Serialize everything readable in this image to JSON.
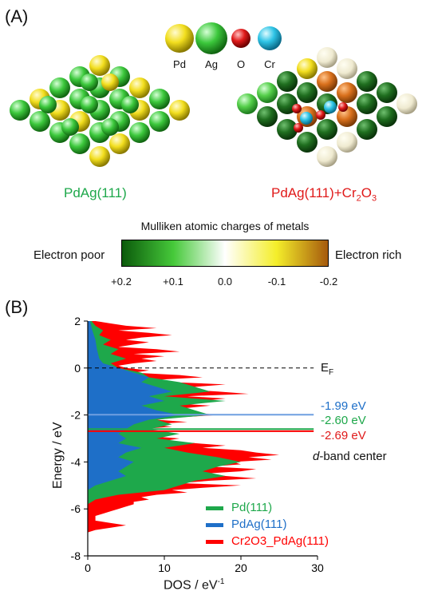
{
  "panel_a": {
    "label": "(A)",
    "atom_legend": [
      {
        "symbol": "Pd",
        "color": "#f2de1e"
      },
      {
        "symbol": "Ag",
        "color": "#3cc83c"
      },
      {
        "symbol": "O",
        "color": "#e01a1a"
      },
      {
        "symbol": "Cr",
        "color": "#2ec4e6"
      }
    ],
    "left_caption": "PdAg(111)",
    "right_caption_main": "PdAg(111)+Cr",
    "right_caption_sub1": "2",
    "right_caption_o": "O",
    "right_caption_sub2": "3",
    "colorbar": {
      "title": "Mulliken atomic charges of metals",
      "left_label": "Electron poor",
      "right_label": "Electron rich",
      "ticks": [
        "+0.2",
        "+0.1",
        "0.0",
        "-0.1",
        "-0.2"
      ],
      "colors": [
        "#0b5a0b",
        "#46c93a",
        "#ffffff",
        "#f4ee2a",
        "#a65a0d"
      ]
    }
  },
  "panel_b": {
    "label": "(B)",
    "fermi_label": "E",
    "fermi_sub": "F",
    "dband_label_italic": "d",
    "dband_label_rest": "-band center",
    "x_tick_labels": [
      "0",
      "10",
      "20",
      "30"
    ],
    "y_tick_labels": [
      "2",
      "0",
      "-2",
      "-4",
      "-6",
      "-8"
    ]
  },
  "chart_data": {
    "type": "area",
    "title": "",
    "xlabel": "DOS / eV",
    "xlabel_sup": "-1",
    "ylabel": "Energy / eV",
    "xlim": [
      0,
      30
    ],
    "ylim": [
      -8,
      2
    ],
    "x_ticks": [
      0,
      10,
      20,
      30
    ],
    "y_ticks": [
      2,
      0,
      -2,
      -4,
      -6,
      -8
    ],
    "fermi_level": 0,
    "series": [
      {
        "name": "Cr2O3_PdAg(111)",
        "color": "#ff0000",
        "band_center": -2.69,
        "band_center_label": "-2.69 eV",
        "dos": [
          [
            2,
            1
          ],
          [
            1.9,
            3
          ],
          [
            1.8,
            5
          ],
          [
            1.7,
            9
          ],
          [
            1.6,
            4
          ],
          [
            1.5,
            8
          ],
          [
            1.4,
            11
          ],
          [
            1.3,
            7
          ],
          [
            1.2,
            5
          ],
          [
            1.1,
            8
          ],
          [
            1,
            6
          ],
          [
            0.9,
            4
          ],
          [
            0.8,
            9
          ],
          [
            0.7,
            12
          ],
          [
            0.6,
            6
          ],
          [
            0.5,
            10
          ],
          [
            0.4,
            7
          ],
          [
            0.3,
            9
          ],
          [
            0.2,
            6
          ],
          [
            0.1,
            4
          ],
          [
            0,
            5
          ],
          [
            -0.1,
            8
          ],
          [
            -0.2,
            6
          ],
          [
            -0.3,
            12
          ],
          [
            -0.4,
            15
          ],
          [
            -0.5,
            9
          ],
          [
            -0.6,
            11
          ],
          [
            -0.7,
            18
          ],
          [
            -0.8,
            14
          ],
          [
            -0.9,
            12
          ],
          [
            -1,
            17
          ],
          [
            -1.1,
            21
          ],
          [
            -1.2,
            13
          ],
          [
            -1.3,
            18
          ],
          [
            -1.4,
            15
          ],
          [
            -1.5,
            11
          ],
          [
            -1.6,
            16
          ],
          [
            -1.7,
            13
          ],
          [
            -1.8,
            10
          ],
          [
            -1.9,
            14
          ],
          [
            -2,
            17
          ],
          [
            -2.1,
            12
          ],
          [
            -2.2,
            9
          ],
          [
            -2.3,
            13
          ],
          [
            -2.4,
            8
          ],
          [
            -2.5,
            11
          ],
          [
            -2.6,
            7
          ],
          [
            -2.7,
            10
          ],
          [
            -2.8,
            6
          ],
          [
            -2.9,
            8
          ],
          [
            -3,
            12
          ],
          [
            -3.1,
            10
          ],
          [
            -3.2,
            14
          ],
          [
            -3.3,
            18
          ],
          [
            -3.4,
            15
          ],
          [
            -3.5,
            20
          ],
          [
            -3.6,
            22
          ],
          [
            -3.7,
            25
          ],
          [
            -3.8,
            21
          ],
          [
            -3.9,
            24
          ],
          [
            -4,
            19
          ],
          [
            -4.1,
            20
          ],
          [
            -4.2,
            16
          ],
          [
            -4.3,
            22
          ],
          [
            -4.4,
            20
          ],
          [
            -4.5,
            15
          ],
          [
            -4.6,
            18
          ],
          [
            -4.7,
            22
          ],
          [
            -4.8,
            16
          ],
          [
            -4.9,
            12
          ],
          [
            -5,
            20
          ],
          [
            -5.1,
            15
          ],
          [
            -5.2,
            11
          ],
          [
            -5.3,
            13
          ],
          [
            -5.4,
            9
          ],
          [
            -5.5,
            7
          ],
          [
            -5.6,
            8
          ],
          [
            -5.7,
            6
          ],
          [
            -5.8,
            6
          ],
          [
            -5.9,
            5
          ],
          [
            -6,
            4
          ],
          [
            -6.1,
            3
          ],
          [
            -6.2,
            2
          ],
          [
            -6.3,
            1
          ],
          [
            -6.4,
            1
          ],
          [
            -6.5,
            1
          ],
          [
            -6.6,
            3
          ],
          [
            -6.7,
            5
          ],
          [
            -6.8,
            3
          ],
          [
            -6.9,
            1
          ],
          [
            -7,
            0
          ]
        ]
      },
      {
        "name": "Pd(111)",
        "color": "#1ea84b",
        "band_center": -2.6,
        "band_center_label": "-2.60 eV",
        "dos": [
          [
            2,
            0.5
          ],
          [
            1.8,
            1
          ],
          [
            1.6,
            2
          ],
          [
            1.4,
            1.5
          ],
          [
            1.2,
            3
          ],
          [
            1,
            2
          ],
          [
            0.8,
            4
          ],
          [
            0.6,
            3
          ],
          [
            0.4,
            5
          ],
          [
            0.2,
            3
          ],
          [
            0,
            4
          ],
          [
            -0.2,
            7
          ],
          [
            -0.4,
            8
          ],
          [
            -0.6,
            12
          ],
          [
            -0.8,
            14
          ],
          [
            -1,
            16
          ],
          [
            -1.2,
            10
          ],
          [
            -1.4,
            18
          ],
          [
            -1.6,
            12
          ],
          [
            -1.8,
            14
          ],
          [
            -2,
            16
          ],
          [
            -2.2,
            9
          ],
          [
            -2.4,
            11
          ],
          [
            -2.6,
            8
          ],
          [
            -2.8,
            12
          ],
          [
            -3,
            9
          ],
          [
            -3.2,
            14
          ],
          [
            -3.4,
            10
          ],
          [
            -3.6,
            13
          ],
          [
            -3.8,
            17
          ],
          [
            -4,
            20
          ],
          [
            -4.2,
            17
          ],
          [
            -4.4,
            15
          ],
          [
            -4.6,
            18
          ],
          [
            -4.8,
            14
          ],
          [
            -5,
            12
          ],
          [
            -5.2,
            10
          ],
          [
            -5.4,
            4
          ],
          [
            -5.6,
            1
          ],
          [
            -5.8,
            0
          ]
        ]
      },
      {
        "name": "PdAg(111)",
        "color": "#1e6fc8",
        "band_center": -1.99,
        "band_center_label": "-1.99 eV",
        "dos": [
          [
            2,
            0.3
          ],
          [
            1.6,
            0.6
          ],
          [
            1.2,
            1
          ],
          [
            0.8,
            1.2
          ],
          [
            0.4,
            1.5
          ],
          [
            0.2,
            2
          ],
          [
            0,
            4
          ],
          [
            -0.2,
            6
          ],
          [
            -0.4,
            8
          ],
          [
            -0.6,
            7
          ],
          [
            -0.8,
            9
          ],
          [
            -1,
            11
          ],
          [
            -1.2,
            8
          ],
          [
            -1.4,
            10
          ],
          [
            -1.6,
            7
          ],
          [
            -1.8,
            9
          ],
          [
            -2,
            12
          ],
          [
            -2.2,
            8
          ],
          [
            -2.4,
            6
          ],
          [
            -2.6,
            5
          ],
          [
            -2.8,
            4
          ],
          [
            -3,
            5
          ],
          [
            -3.2,
            4
          ],
          [
            -3.4,
            7
          ],
          [
            -3.6,
            5
          ],
          [
            -3.8,
            4
          ],
          [
            -4,
            6
          ],
          [
            -4.2,
            5
          ],
          [
            -4.4,
            4
          ],
          [
            -4.6,
            5
          ],
          [
            -4.8,
            3
          ],
          [
            -5,
            1
          ],
          [
            -5.2,
            0
          ]
        ]
      }
    ]
  }
}
